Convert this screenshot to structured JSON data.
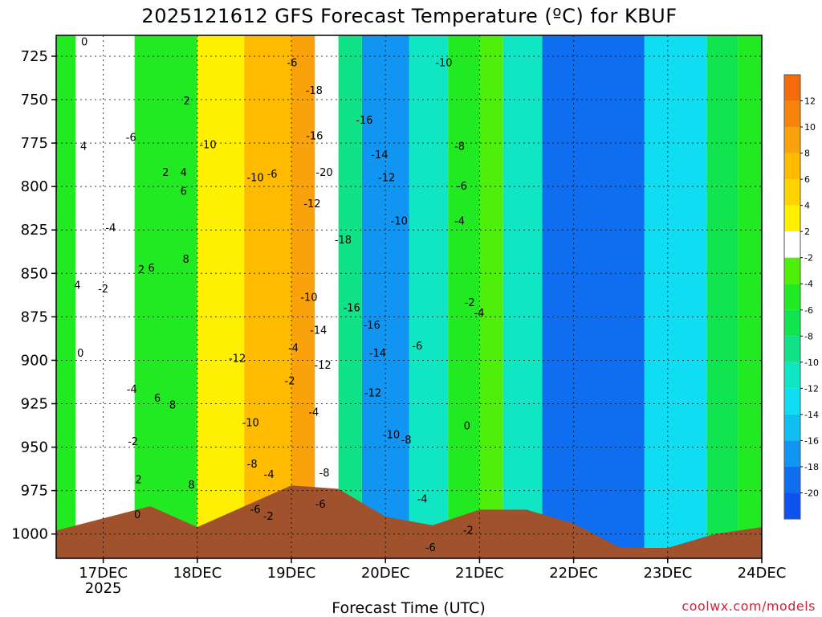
{
  "chart_data": {
    "type": "heatmap",
    "title": "2025121612 GFS Forecast Temperature (ºC) for KBUF",
    "xlabel": "Forecast Time (UTC)",
    "ylabel": "",
    "credit": "coolwx.com/models",
    "y_axis": {
      "reversed": true,
      "ylim": [
        1014,
        713
      ],
      "ticks": [
        "725",
        "750",
        "775",
        "800",
        "825",
        "850",
        "875",
        "900",
        "925",
        "950",
        "975",
        "1000"
      ]
    },
    "x_axis": {
      "ticks": [
        {
          "label": "17DEC",
          "sub": "2025",
          "hours": 12
        },
        {
          "label": "18DEC",
          "sub": "",
          "hours": 36
        },
        {
          "label": "19DEC",
          "sub": "",
          "hours": 60
        },
        {
          "label": "20DEC",
          "sub": "",
          "hours": 84
        },
        {
          "label": "21DEC",
          "sub": "",
          "hours": 108
        },
        {
          "label": "22DEC",
          "sub": "",
          "hours": 132
        },
        {
          "label": "23DEC",
          "sub": "",
          "hours": 156
        },
        {
          "label": "24DEC",
          "sub": "",
          "hours": 180
        }
      ],
      "range_hours": [
        0,
        180
      ],
      "grid": true
    },
    "colorbar": {
      "labels": [
        "12",
        "10",
        "8",
        "6",
        "4",
        "2",
        "-2",
        "-4",
        "-6",
        "-8",
        "-10",
        "-12",
        "-14",
        "-16",
        "-18",
        "-20"
      ],
      "bins": [
        {
          "range": [
            12,
            14
          ],
          "color": "#f26b0c"
        },
        {
          "range": [
            10,
            12
          ],
          "color": "#f7840a"
        },
        {
          "range": [
            8,
            10
          ],
          "color": "#f9a20b"
        },
        {
          "range": [
            6,
            8
          ],
          "color": "#ffbb00"
        },
        {
          "range": [
            4,
            6
          ],
          "color": "#ffd400"
        },
        {
          "range": [
            2,
            4
          ],
          "color": "#ffef00"
        },
        {
          "range": [
            -2,
            2
          ],
          "color": "#ffffff"
        },
        {
          "range": [
            -4,
            -2
          ],
          "color": "#4ef00b"
        },
        {
          "range": [
            -6,
            -4
          ],
          "color": "#22ea22"
        },
        {
          "range": [
            -8,
            -6
          ],
          "color": "#10e44e"
        },
        {
          "range": [
            -10,
            -8
          ],
          "color": "#0fe287"
        },
        {
          "range": [
            -12,
            -10
          ],
          "color": "#10e6c3"
        },
        {
          "range": [
            -14,
            -12
          ],
          "color": "#10ddf2"
        },
        {
          "range": [
            -16,
            -14
          ],
          "color": "#10bff2"
        },
        {
          "range": [
            -18,
            -16
          ],
          "color": "#1096f2"
        },
        {
          "range": [
            -20,
            -18
          ],
          "color": "#0f6ef0"
        },
        {
          "range": [
            -22,
            -20
          ],
          "color": "#0d53f0"
        }
      ]
    },
    "surface_color": "#a0522d",
    "surface_pressure": [
      {
        "hours": 0,
        "p": 998
      },
      {
        "hours": 24,
        "p": 984
      },
      {
        "hours": 36,
        "p": 996
      },
      {
        "hours": 60,
        "p": 972
      },
      {
        "hours": 72,
        "p": 974
      },
      {
        "hours": 84,
        "p": 990
      },
      {
        "hours": 96,
        "p": 995
      },
      {
        "hours": 108,
        "p": 986
      },
      {
        "hours": 120,
        "p": 986
      },
      {
        "hours": 132,
        "p": 994
      },
      {
        "hours": 144,
        "p": 1008
      },
      {
        "hours": 156,
        "p": 1008
      },
      {
        "hours": 168,
        "p": 1000
      },
      {
        "hours": 180,
        "p": 996
      }
    ],
    "temperature_bands": [
      {
        "hours": [
          0,
          5
        ],
        "t": -5
      },
      {
        "hours": [
          5,
          20
        ],
        "t": 1
      },
      {
        "hours": [
          20,
          36
        ],
        "t": -5
      },
      {
        "hours": [
          36,
          48
        ],
        "t": 3
      },
      {
        "hours": [
          48,
          60
        ],
        "t": 6
      },
      {
        "hours": [
          60,
          66
        ],
        "t": 9
      },
      {
        "hours": [
          66,
          72
        ],
        "t": -1
      },
      {
        "hours": [
          72,
          78
        ],
        "t": -9
      },
      {
        "hours": [
          78,
          90
        ],
        "t": -17
      },
      {
        "hours": [
          90,
          100
        ],
        "t": -11
      },
      {
        "hours": [
          100,
          108
        ],
        "t": -5
      },
      {
        "hours": [
          108,
          114
        ],
        "t": -3
      },
      {
        "hours": [
          114,
          124
        ],
        "t": -11
      },
      {
        "hours": [
          124,
          150
        ],
        "t": -19
      },
      {
        "hours": [
          150,
          166
        ],
        "t": -13
      },
      {
        "hours": [
          166,
          174
        ],
        "t": -7
      },
      {
        "hours": [
          174,
          180
        ],
        "t": -5
      }
    ],
    "contour_labels": [
      {
        "text": "0",
        "hours": 7.2,
        "p": 717
      },
      {
        "text": "4",
        "hours": 7.0,
        "p": 777
      },
      {
        "text": "4",
        "hours": 5.4,
        "p": 857
      },
      {
        "text": "0",
        "hours": 6.2,
        "p": 896
      },
      {
        "text": "-2",
        "hours": 12.0,
        "p": 859
      },
      {
        "text": "-4",
        "hours": 13.9,
        "p": 824
      },
      {
        "text": "-6",
        "hours": 19.1,
        "p": 772
      },
      {
        "text": "-4",
        "hours": 19.3,
        "p": 917
      },
      {
        "text": "2",
        "hours": 27.9,
        "p": 792
      },
      {
        "text": "2",
        "hours": 21.7,
        "p": 848
      },
      {
        "text": "6",
        "hours": 24.3,
        "p": 847
      },
      {
        "text": "6",
        "hours": 25.8,
        "p": 922
      },
      {
        "text": "8",
        "hours": 29.7,
        "p": 926
      },
      {
        "text": "8",
        "hours": 33.1,
        "p": 842
      },
      {
        "text": "6",
        "hours": 32.5,
        "p": 803
      },
      {
        "text": "4",
        "hours": 32.5,
        "p": 792
      },
      {
        "text": "2",
        "hours": 33.3,
        "p": 751
      },
      {
        "text": "8",
        "hours": 34.5,
        "p": 972
      },
      {
        "text": "2",
        "hours": 21.0,
        "p": 969
      },
      {
        "text": "0",
        "hours": 20.7,
        "p": 989
      },
      {
        "text": "-2",
        "hours": 19.6,
        "p": 947
      },
      {
        "text": "-10",
        "hours": 38.7,
        "p": 776
      },
      {
        "text": "-12",
        "hours": 46.2,
        "p": 899
      },
      {
        "text": "-10",
        "hours": 49.6,
        "p": 936
      },
      {
        "text": "-8",
        "hours": 50.0,
        "p": 960
      },
      {
        "text": "-6",
        "hours": 50.8,
        "p": 986
      },
      {
        "text": "-10",
        "hours": 50.8,
        "p": 795
      },
      {
        "text": "-6",
        "hours": 55.1,
        "p": 793
      },
      {
        "text": "-6",
        "hours": 60.2,
        "p": 729
      },
      {
        "text": "-4",
        "hours": 54.3,
        "p": 966
      },
      {
        "text": "-2",
        "hours": 54.1,
        "p": 990
      },
      {
        "text": "-4",
        "hours": 60.5,
        "p": 893
      },
      {
        "text": "-2",
        "hours": 59.6,
        "p": 912
      },
      {
        "text": "-4",
        "hours": 65.7,
        "p": 930
      },
      {
        "text": "-18",
        "hours": 65.8,
        "p": 745
      },
      {
        "text": "-16",
        "hours": 65.9,
        "p": 771
      },
      {
        "text": "-20",
        "hours": 68.4,
        "p": 792
      },
      {
        "text": "-12",
        "hours": 65.3,
        "p": 810
      },
      {
        "text": "-18",
        "hours": 73.2,
        "p": 831
      },
      {
        "text": "-16",
        "hours": 78.6,
        "p": 762
      },
      {
        "text": "-14",
        "hours": 82.5,
        "p": 782
      },
      {
        "text": "-12",
        "hours": 84.3,
        "p": 795
      },
      {
        "text": "-10",
        "hours": 87.5,
        "p": 820
      },
      {
        "text": "-10",
        "hours": 64.5,
        "p": 864
      },
      {
        "text": "-14",
        "hours": 66.9,
        "p": 883
      },
      {
        "text": "-12",
        "hours": 68.0,
        "p": 903
      },
      {
        "text": "-16",
        "hours": 75.4,
        "p": 870
      },
      {
        "text": "-16",
        "hours": 80.5,
        "p": 880
      },
      {
        "text": "-14",
        "hours": 82.0,
        "p": 896
      },
      {
        "text": "-12",
        "hours": 80.8,
        "p": 919
      },
      {
        "text": "-10",
        "hours": 85.5,
        "p": 943
      },
      {
        "text": "-8",
        "hours": 68.4,
        "p": 965
      },
      {
        "text": "-6",
        "hours": 67.4,
        "p": 983
      },
      {
        "text": "-8",
        "hours": 89.3,
        "p": 946
      },
      {
        "text": "-6",
        "hours": 92.1,
        "p": 892
      },
      {
        "text": "-4",
        "hours": 93.4,
        "p": 980
      },
      {
        "text": "-6",
        "hours": 95.5,
        "p": 1008
      },
      {
        "text": "-10",
        "hours": 98.9,
        "p": 729
      },
      {
        "text": "-8",
        "hours": 102.9,
        "p": 777
      },
      {
        "text": "-6",
        "hours": 103.5,
        "p": 800
      },
      {
        "text": "-4",
        "hours": 102.9,
        "p": 820
      },
      {
        "text": "-2",
        "hours": 105.5,
        "p": 867
      },
      {
        "text": "-4",
        "hours": 107.9,
        "p": 873
      },
      {
        "text": "0",
        "hours": 104.8,
        "p": 938
      },
      {
        "text": "-2",
        "hours": 105.1,
        "p": 998
      }
    ]
  }
}
